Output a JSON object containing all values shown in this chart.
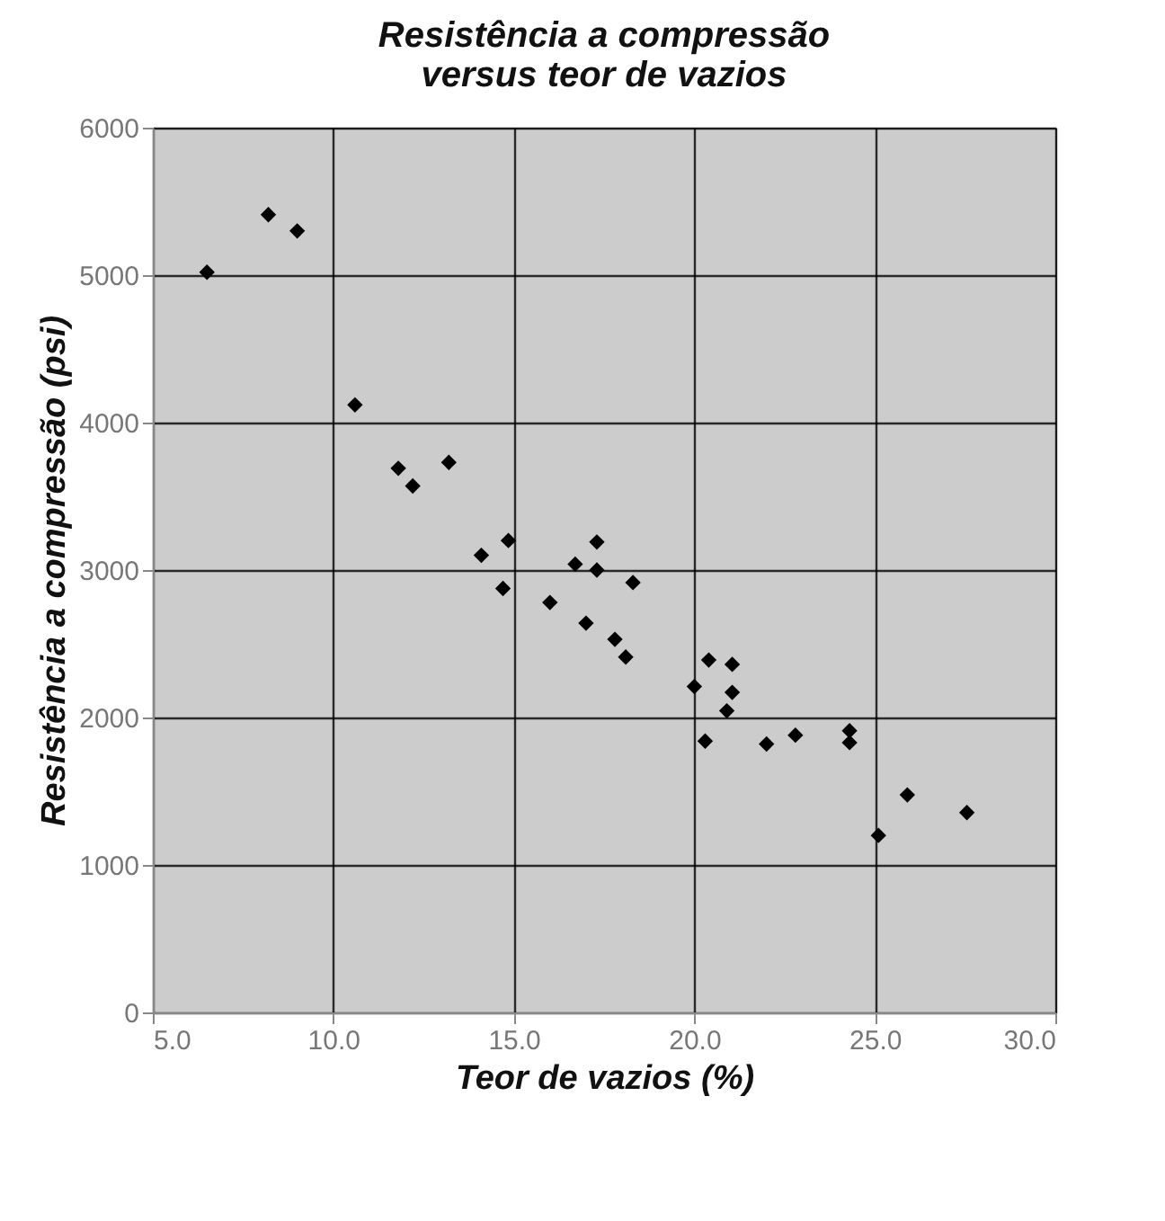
{
  "chart_data": {
    "type": "scatter",
    "title": [
      "Resistência a compressão",
      "versus teor de vazios"
    ],
    "xlabel": "Teor de vazios (%)",
    "ylabel": "Resistência a compressão (psi)",
    "x": [
      6.5,
      8.2,
      9.0,
      10.6,
      11.8,
      12.2,
      13.2,
      14.1,
      14.85,
      14.7,
      16.0,
      16.7,
      17.3,
      17.3,
      18.3,
      17.0,
      17.8,
      18.1,
      20.0,
      20.4,
      21.05,
      21.05,
      20.9,
      20.3,
      22.0,
      22.8,
      24.3,
      24.3,
      25.1,
      25.9,
      27.55
    ],
    "series": [
      {
        "color": "#000000",
        "values": [
          5020,
          5410,
          5300,
          4120,
          3690,
          3570,
          3730,
          3100,
          3200,
          2875,
          2780,
          3040,
          3190,
          3000,
          2915,
          2640,
          2530,
          2410,
          2210,
          2390,
          2360,
          2170,
          2045,
          1840,
          1820,
          1880,
          1910,
          1830,
          1200,
          1475,
          1355
        ]
      }
    ],
    "xlim": [
      5,
      30
    ],
    "xticks": [
      {
        "value": 5,
        "label": "5.0"
      },
      {
        "value": 10,
        "label": "10.0"
      },
      {
        "value": 15,
        "label": "15.0"
      },
      {
        "value": 20,
        "label": "20.0"
      },
      {
        "value": 25,
        "label": "25.0"
      },
      {
        "value": 30,
        "label": "30.0"
      }
    ],
    "ylim": [
      0,
      6000
    ],
    "yticks": [
      0,
      1000,
      2000,
      3000,
      4000,
      5000,
      6000
    ],
    "grid": true,
    "marker": "diamond"
  }
}
